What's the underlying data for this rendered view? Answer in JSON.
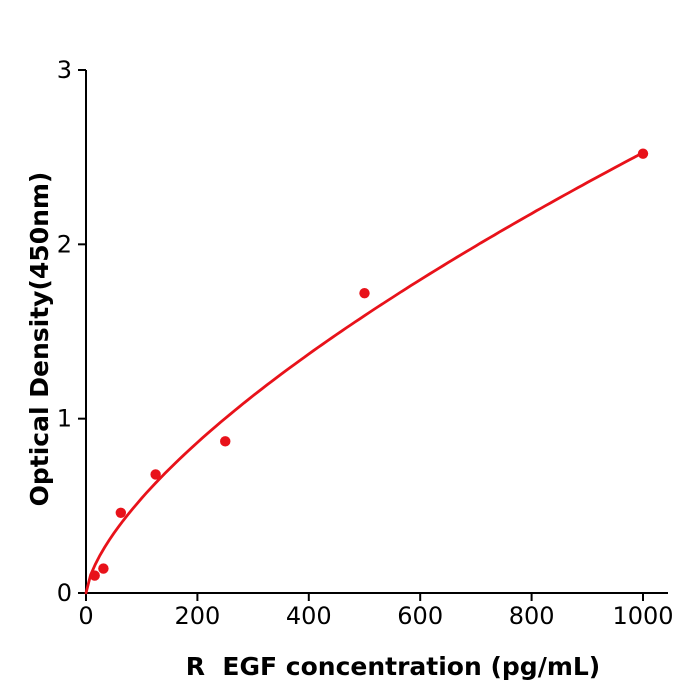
{
  "chart_data": {
    "type": "scatter",
    "title": "",
    "xlabel": "R  EGF concentration (pg/mL)",
    "ylabel": "Optical Density(450nm)",
    "x": [
      15.6,
      31.25,
      62.5,
      125,
      250,
      500,
      1000
    ],
    "y": [
      0.1,
      0.14,
      0.46,
      0.68,
      0.87,
      1.72,
      2.52
    ],
    "series": [
      {
        "name": "standard-points",
        "type": "scatter"
      },
      {
        "name": "fit-curve",
        "type": "line"
      }
    ],
    "fit_curve": {
      "model": "power",
      "a": 0.0252,
      "b": 0.667,
      "x_start": 0,
      "x_end": 1000
    },
    "xticks": [
      0,
      200,
      400,
      600,
      800,
      1000
    ],
    "yticks": [
      0,
      1,
      2,
      3
    ],
    "xlim": [
      0,
      1045
    ],
    "ylim": [
      0,
      3
    ],
    "grid": false,
    "legend": null,
    "colors": {
      "marker": "#e8121a",
      "line": "#e8121a",
      "axis": "#000000",
      "background": "#ffffff"
    }
  }
}
